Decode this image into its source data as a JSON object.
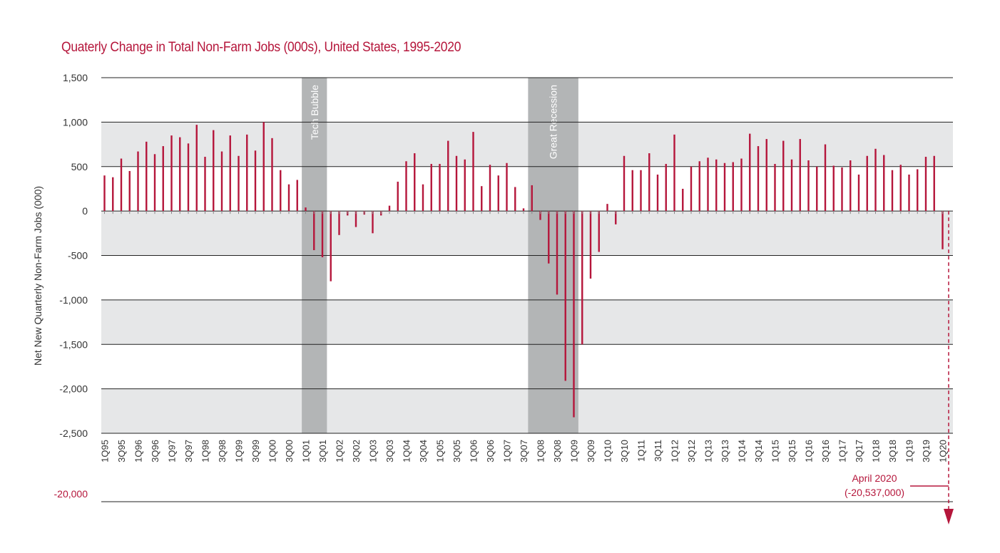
{
  "chart_data": {
    "type": "bar",
    "title": "Quaterly Change in Total Non-Farm Jobs (000s), United States, 1995-2020",
    "xlabel": "",
    "ylabel": "Net New Quarterly Non-Farm Jobs (000)",
    "ylim": [
      -2500,
      1500
    ],
    "yticks": [
      1500,
      1000,
      500,
      0,
      -500,
      -1000,
      -1500,
      -2000,
      -2500
    ],
    "ytick_labels": [
      "1,500",
      "1,000",
      "500",
      "0",
      "-500",
      "-1,000",
      "-1,500",
      "-2,000",
      "-2,500"
    ],
    "x_tick_labels": [
      "1Q95",
      "3Q95",
      "1Q96",
      "3Q96",
      "1Q97",
      "3Q97",
      "1Q98",
      "3Q98",
      "1Q99",
      "3Q99",
      "1Q00",
      "3Q00",
      "1Q01",
      "3Q01",
      "1Q02",
      "3Q02",
      "1Q03",
      "3Q03",
      "1Q04",
      "3Q04",
      "1Q05",
      "3Q05",
      "1Q06",
      "3Q06",
      "1Q07",
      "3Q07",
      "1Q08",
      "3Q08",
      "1Q09",
      "3Q09",
      "1Q10",
      "3Q10",
      "1Q11",
      "3Q11",
      "1Q12",
      "3Q12",
      "1Q13",
      "3Q13",
      "1Q14",
      "3Q14",
      "1Q15",
      "3Q15",
      "1Q16",
      "3Q16",
      "1Q17",
      "3Q17",
      "1Q18",
      "3Q18",
      "1Q19",
      "3Q19",
      "1Q20"
    ],
    "values": [
      400,
      380,
      590,
      450,
      670,
      780,
      640,
      730,
      850,
      830,
      760,
      970,
      610,
      910,
      670,
      850,
      620,
      860,
      680,
      1000,
      820,
      460,
      300,
      350,
      40,
      -440,
      -520,
      -790,
      -270,
      -50,
      -180,
      -40,
      -250,
      -50,
      60,
      330,
      560,
      650,
      300,
      530,
      530,
      790,
      620,
      580,
      890,
      280,
      520,
      400,
      540,
      270,
      30,
      290,
      -100,
      -590,
      -940,
      -1910,
      -2320,
      -1500,
      -760,
      -460,
      80,
      -150,
      620,
      460,
      460,
      650,
      410,
      530,
      860,
      250,
      500,
      560,
      600,
      580,
      540,
      550,
      590,
      870,
      730,
      810,
      530,
      790,
      580,
      810,
      570,
      500,
      750,
      510,
      490,
      570,
      410,
      620,
      700,
      630,
      460,
      520,
      410,
      470,
      610,
      620,
      -430
    ],
    "shaded_periods": [
      {
        "label": "Tech Bubble",
        "start_index": 24,
        "end_index": 26
      },
      {
        "label": "Great Recession",
        "start_index": 51,
        "end_index": 56
      }
    ],
    "grid": true,
    "broken_axis": {
      "label": "-20,000",
      "annotation_lines": [
        "April 2020",
        "(-20,537,000)"
      ],
      "value": -20537
    },
    "colors": {
      "bars": "#b5163b",
      "band_fill": "#e6e7e8",
      "shade": "#b3b5b6",
      "grid": "#222222"
    }
  }
}
